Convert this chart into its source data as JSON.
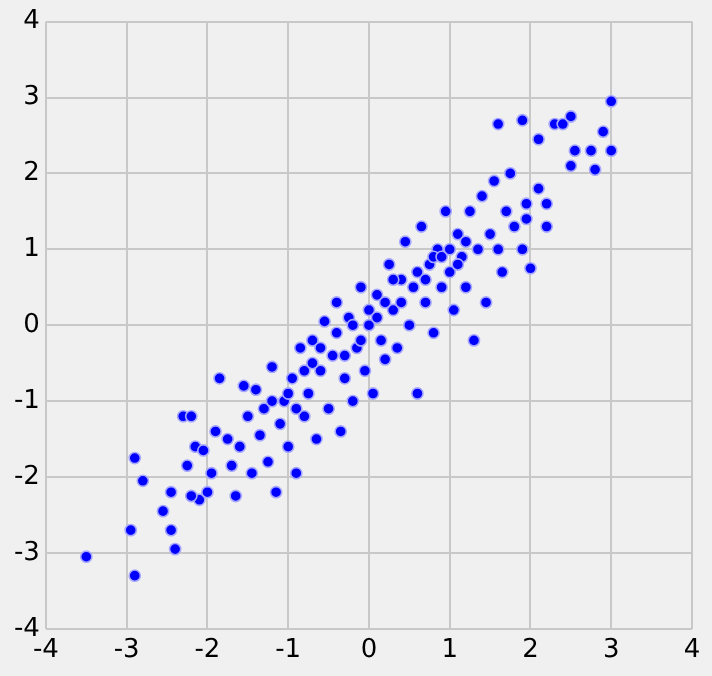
{
  "chart_data": {
    "type": "scatter",
    "xlim": [
      -4,
      4
    ],
    "ylim": [
      -4,
      4
    ],
    "xticks": [
      -4,
      -3,
      -2,
      -1,
      0,
      1,
      2,
      3,
      4
    ],
    "yticks": [
      -4,
      -3,
      -2,
      -1,
      0,
      1,
      2,
      3,
      4
    ],
    "grid": true,
    "marker": "circle",
    "legend": false,
    "series": [
      {
        "color": "#0000ff",
        "x": [
          -3.5,
          -2.9,
          -2.95,
          -2.9,
          -2.8,
          -2.55,
          -2.45,
          -2.4,
          -2.45,
          -2.3,
          -2.2,
          -2.15,
          -2.25,
          -2.05,
          -2.1,
          -2.2,
          -2.0,
          -1.95,
          -1.9,
          -1.85,
          -1.75,
          -1.7,
          -1.65,
          -1.6,
          -1.55,
          -1.5,
          -1.45,
          -1.4,
          -1.35,
          -1.3,
          -1.25,
          -1.2,
          -1.15,
          -1.1,
          -1.05,
          -1.0,
          -0.95,
          -0.9,
          -0.85,
          -0.8,
          -0.75,
          -0.7,
          -0.65,
          -0.6,
          -0.55,
          -0.5,
          -0.45,
          -0.4,
          -0.35,
          -0.3,
          -0.25,
          -0.2,
          -0.15,
          -0.1,
          -0.05,
          0.0,
          0.05,
          0.1,
          0.15,
          0.2,
          0.25,
          0.3,
          0.35,
          0.4,
          0.45,
          0.5,
          0.55,
          0.6,
          0.65,
          0.7,
          0.75,
          0.8,
          0.85,
          0.9,
          0.95,
          1.0,
          1.05,
          1.1,
          1.15,
          1.2,
          1.25,
          1.3,
          1.35,
          1.4,
          1.45,
          1.5,
          1.55,
          1.6,
          1.65,
          1.7,
          1.75,
          1.8,
          1.9,
          1.95,
          2.0,
          1.95,
          1.9,
          1.6,
          2.1,
          2.1,
          2.2,
          2.3,
          2.4,
          2.5,
          2.5,
          2.55,
          2.75,
          2.8,
          2.9,
          3.0,
          3.0,
          2.2,
          -1.0,
          -0.8,
          -0.6,
          -0.4,
          -0.2,
          0.0,
          0.2,
          0.4,
          0.6,
          0.8,
          1.0,
          0.9,
          0.7,
          1.2,
          -0.3,
          -0.1,
          0.1,
          -1.2,
          -0.9,
          0.3,
          1.1,
          -0.7
        ],
        "values": [
          -3.05,
          -3.3,
          -2.7,
          -1.75,
          -2.05,
          -2.45,
          -2.7,
          -2.95,
          -2.2,
          -1.2,
          -1.2,
          -1.6,
          -1.85,
          -1.65,
          -2.3,
          -2.25,
          -2.2,
          -1.95,
          -1.4,
          -0.7,
          -1.5,
          -1.85,
          -2.25,
          -1.6,
          -0.8,
          -1.2,
          -1.95,
          -0.85,
          -1.45,
          -1.1,
          -1.8,
          -0.55,
          -2.2,
          -1.3,
          -1.0,
          -1.6,
          -0.7,
          -1.95,
          -0.3,
          -1.2,
          -0.9,
          -0.2,
          -1.5,
          -0.6,
          0.05,
          -1.1,
          -0.4,
          0.3,
          -1.4,
          -0.7,
          0.1,
          -1.0,
          -0.3,
          0.5,
          -0.6,
          0.0,
          -0.9,
          0.4,
          -0.2,
          -0.45,
          0.8,
          0.2,
          -0.3,
          0.6,
          1.1,
          0.0,
          0.5,
          -0.9,
          1.3,
          0.3,
          0.8,
          -0.1,
          1.0,
          0.5,
          1.5,
          0.7,
          0.2,
          1.2,
          0.9,
          0.5,
          1.5,
          -0.2,
          1.0,
          1.7,
          0.3,
          1.2,
          1.9,
          1.0,
          0.7,
          1.5,
          2.0,
          1.3,
          1.0,
          1.6,
          0.75,
          1.4,
          2.7,
          2.65,
          2.45,
          1.8,
          1.6,
          2.65,
          2.65,
          2.75,
          2.1,
          2.3,
          2.3,
          2.05,
          2.55,
          2.3,
          2.95,
          1.3,
          -0.9,
          -0.6,
          -0.3,
          -0.1,
          0.0,
          0.2,
          0.3,
          0.3,
          0.7,
          0.9,
          1.0,
          0.9,
          0.6,
          1.1,
          -0.4,
          -0.2,
          0.1,
          -1.0,
          -1.1,
          0.6,
          0.8,
          -0.5
        ]
      }
    ]
  }
}
